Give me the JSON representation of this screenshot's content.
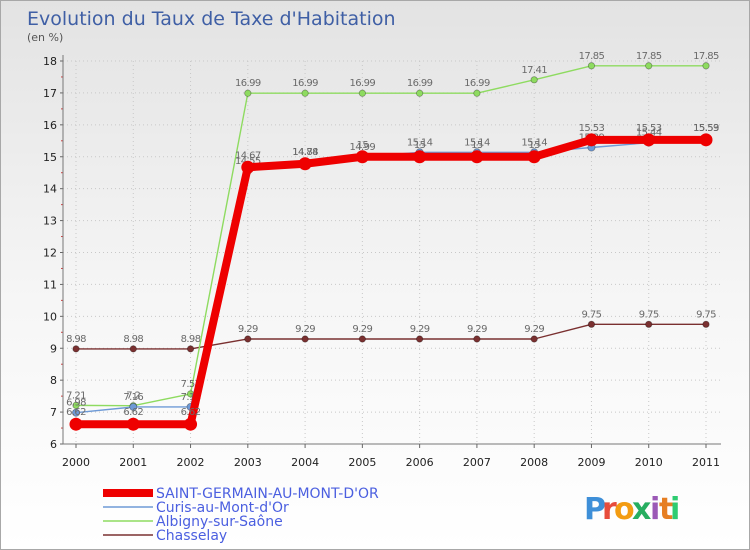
{
  "chart_data": {
    "type": "line",
    "title": "Evolution du Taux de Taxe d'Habitation",
    "subtitle": "(en %)",
    "x": [
      "2000",
      "2001",
      "2002",
      "2003",
      "2004",
      "2005",
      "2006",
      "2007",
      "2008",
      "2009",
      "2010",
      "2011"
    ],
    "ylim": [
      6,
      18
    ],
    "yticks": [
      "6",
      "7",
      "8",
      "9",
      "10",
      "11",
      "12",
      "13",
      "14",
      "15",
      "16",
      "17",
      "18"
    ],
    "grid": true,
    "series": [
      {
        "name": "Chasselay",
        "color": "#7a3030",
        "values": [
          8.98,
          8.98,
          8.98,
          9.29,
          9.29,
          9.29,
          9.29,
          9.29,
          9.29,
          9.75,
          9.75,
          9.75
        ],
        "labels": [
          "8.98",
          "8.98",
          "8.98",
          "9.29",
          "9.29",
          "9.29",
          "9.29",
          "9.29",
          "9.29",
          "9.75",
          "9.75",
          "9.75"
        ]
      },
      {
        "name": "Albigny-sur-Saône",
        "color": "#8edb60",
        "values": [
          7.21,
          7.2,
          7.57,
          16.99,
          16.99,
          16.99,
          16.99,
          16.99,
          17.41,
          17.85,
          17.85,
          17.85
        ],
        "labels": [
          "7.21",
          "7.2",
          "7.57",
          "16.99",
          "16.99",
          "16.99",
          "16.99",
          "16.99",
          "17.41",
          "17.85",
          "17.85",
          "17.85"
        ]
      },
      {
        "name": "Curis-au-Mont-d'Or",
        "color": "#6e9ad6",
        "values": [
          6.98,
          7.16,
          7.16,
          14.55,
          14.84,
          14.99,
          15.14,
          15.14,
          15.14,
          15.29,
          15.44,
          15.59
        ],
        "labels": [
          "6.98",
          "7.16",
          "7.16",
          "14.55",
          "14.84",
          "14.99",
          "15.14",
          "15.14",
          "15.14",
          "15.29",
          "15.44",
          "15.59"
        ]
      },
      {
        "name": "SAINT-GERMAIN-AU-MONT-D'OR",
        "color": "#ee0000",
        "values": [
          6.62,
          6.62,
          6.62,
          14.67,
          14.78,
          15,
          15,
          15,
          15,
          15.53,
          15.53,
          15.53
        ],
        "labels": [
          "6.62",
          "6.62",
          "6.62",
          "14.67",
          "14.78",
          "15",
          "15",
          "15",
          "15",
          "15.53",
          "15.53",
          "15.53"
        ]
      }
    ],
    "legend_order": [
      "SAINT-GERMAIN-AU-MONT-D'OR",
      "Curis-au-Mont-d'Or",
      "Albigny-sur-Saône",
      "Chasselay"
    ],
    "legend_position": "bottom-left"
  },
  "brand": {
    "letters": [
      "P",
      "r",
      "o",
      "x",
      "i",
      "t",
      "i"
    ],
    "colors": [
      "#3e8fd8",
      "#e74c3c",
      "#f39c12",
      "#27ae60",
      "#9b59b6",
      "#e67e22",
      "#2ecc71"
    ]
  }
}
